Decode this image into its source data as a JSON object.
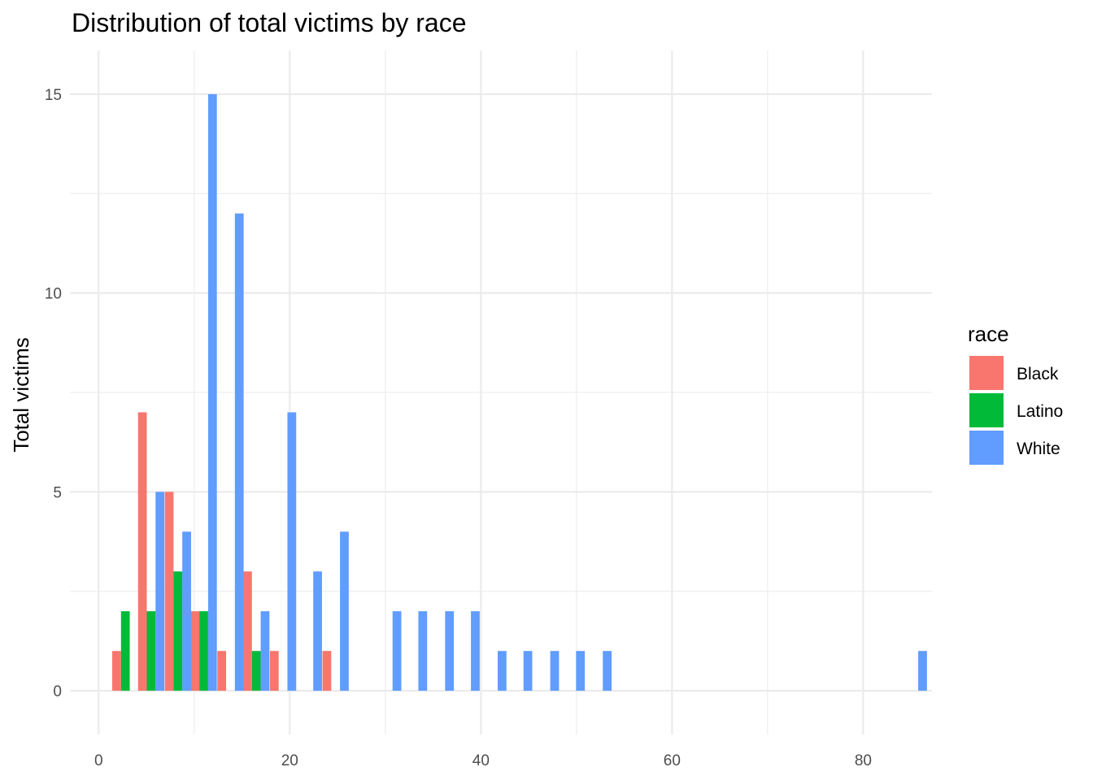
{
  "chart_data": {
    "type": "bar",
    "title": "Distribution of total victims by race",
    "xlabel": "",
    "ylabel": "Total victims",
    "xlim": [
      -3,
      87.2
    ],
    "ylim": [
      -1.1,
      16.1
    ],
    "x_ticks": [
      0,
      20,
      40,
      60,
      80
    ],
    "y_ticks": [
      0,
      5,
      10,
      15
    ],
    "x_tick_labels": [
      "0",
      "20",
      "40",
      "60",
      "80"
    ],
    "y_tick_labels": [
      "0",
      "5",
      "10",
      "15"
    ],
    "grid": true,
    "bin_width": 2.75,
    "legend": {
      "title": "race",
      "position": "right"
    },
    "series": [
      {
        "name": "Black",
        "color": "#F8766D",
        "bins": [
          {
            "x": 2.8,
            "count": 1
          },
          {
            "x": 5.5,
            "count": 7
          },
          {
            "x": 8.3,
            "count": 5
          },
          {
            "x": 11.0,
            "count": 2
          },
          {
            "x": 13.8,
            "count": 1
          },
          {
            "x": 16.5,
            "count": 3
          },
          {
            "x": 19.3,
            "count": 1
          },
          {
            "x": 24.8,
            "count": 1
          }
        ]
      },
      {
        "name": "Latino",
        "color": "#00BA38",
        "bins": [
          {
            "x": 2.8,
            "count": 2
          },
          {
            "x": 5.5,
            "count": 2
          },
          {
            "x": 8.3,
            "count": 3
          },
          {
            "x": 11.0,
            "count": 2
          },
          {
            "x": 16.5,
            "count": 1
          }
        ]
      },
      {
        "name": "White",
        "color": "#619CFF",
        "bins": [
          {
            "x": 5.5,
            "count": 5
          },
          {
            "x": 8.3,
            "count": 4
          },
          {
            "x": 11.0,
            "count": 15
          },
          {
            "x": 13.8,
            "count": 12
          },
          {
            "x": 16.5,
            "count": 2
          },
          {
            "x": 19.3,
            "count": 7
          },
          {
            "x": 22.0,
            "count": 3
          },
          {
            "x": 24.8,
            "count": 4
          },
          {
            "x": 30.3,
            "count": 2
          },
          {
            "x": 33.0,
            "count": 2
          },
          {
            "x": 35.8,
            "count": 2
          },
          {
            "x": 38.5,
            "count": 2
          },
          {
            "x": 41.3,
            "count": 1
          },
          {
            "x": 44.0,
            "count": 1
          },
          {
            "x": 46.8,
            "count": 1
          },
          {
            "x": 49.5,
            "count": 1
          },
          {
            "x": 52.3,
            "count": 1
          },
          {
            "x": 85.3,
            "count": 1
          }
        ]
      }
    ]
  }
}
